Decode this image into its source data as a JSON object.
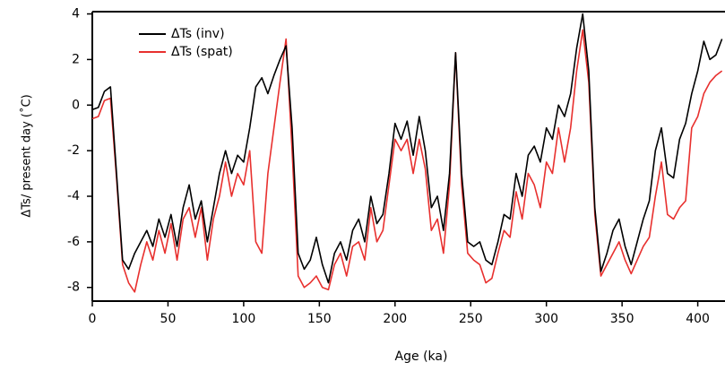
{
  "chart_data": {
    "type": "line",
    "xlabel": "Age (ka)",
    "ylabel": "ΔTs/ present day (˚C)",
    "xlim": [
      0,
      418
    ],
    "ylim": [
      -8.6,
      4.1
    ],
    "xticks": [
      0,
      50,
      100,
      150,
      200,
      250,
      300,
      350,
      400
    ],
    "yticks": [
      -8,
      -6,
      -4,
      -2,
      0,
      2,
      4
    ],
    "legend": "top-left",
    "x": [
      0,
      4,
      8,
      12,
      16,
      20,
      24,
      28,
      32,
      36,
      40,
      44,
      48,
      52,
      56,
      60,
      64,
      68,
      72,
      76,
      80,
      84,
      88,
      92,
      96,
      100,
      104,
      108,
      112,
      116,
      120,
      124,
      128,
      132,
      136,
      140,
      144,
      148,
      152,
      156,
      160,
      164,
      168,
      172,
      176,
      180,
      184,
      188,
      192,
      196,
      200,
      204,
      208,
      212,
      216,
      220,
      224,
      228,
      232,
      236,
      240,
      244,
      248,
      252,
      256,
      260,
      264,
      268,
      272,
      276,
      280,
      284,
      288,
      292,
      296,
      300,
      304,
      308,
      312,
      316,
      320,
      324,
      328,
      332,
      336,
      340,
      344,
      348,
      352,
      356,
      360,
      364,
      368,
      372,
      376,
      380,
      384,
      388,
      392,
      396,
      400,
      404,
      408,
      412,
      416
    ],
    "series": [
      {
        "name": "ΔTs (inv)",
        "color": "#000000",
        "values": [
          -0.2,
          -0.1,
          0.6,
          0.8,
          -3,
          -6.8,
          -7.2,
          -6.5,
          -6.0,
          -5.5,
          -6.2,
          -5.0,
          -5.8,
          -4.8,
          -6.2,
          -4.5,
          -3.5,
          -5.0,
          -4.2,
          -6.0,
          -4.5,
          -3.0,
          -2.0,
          -3.0,
          -2.2,
          -2.5,
          -1.0,
          0.8,
          1.2,
          0.5,
          1.3,
          2.0,
          2.6,
          -1.0,
          -6.5,
          -7.2,
          -6.8,
          -5.8,
          -7.0,
          -7.8,
          -6.5,
          -6.0,
          -6.8,
          -5.5,
          -5.0,
          -6.0,
          -4.0,
          -5.2,
          -4.8,
          -3.0,
          -0.8,
          -1.5,
          -0.7,
          -2.2,
          -0.5,
          -2.0,
          -4.5,
          -4.0,
          -5.5,
          -3.0,
          2.3,
          -3.0,
          -6.0,
          -6.2,
          -6.0,
          -6.8,
          -7.0,
          -6.0,
          -4.8,
          -5.0,
          -3.0,
          -4.0,
          -2.2,
          -1.8,
          -2.5,
          -1.0,
          -1.5,
          0.0,
          -0.5,
          0.5,
          2.5,
          4.0,
          1.5,
          -4.5,
          -7.3,
          -6.5,
          -5.5,
          -5.0,
          -6.2,
          -7.0,
          -6.0,
          -5.0,
          -4.2,
          -2.0,
          -1.0,
          -3.0,
          -3.2,
          -1.5,
          -0.8,
          0.5,
          1.5,
          2.8,
          2.0,
          2.2,
          2.9
        ]
      },
      {
        "name": "ΔTs (spat)",
        "color": "#e8302e",
        "values": [
          -0.6,
          -0.5,
          0.2,
          0.3,
          -3.2,
          -7.0,
          -7.8,
          -8.2,
          -7.0,
          -6.0,
          -6.8,
          -5.5,
          -6.5,
          -5.2,
          -6.8,
          -5.0,
          -4.5,
          -5.8,
          -4.5,
          -6.8,
          -5.0,
          -4.0,
          -2.5,
          -4.0,
          -3.0,
          -3.5,
          -2.0,
          -6.0,
          -6.5,
          -3.0,
          -1.0,
          1.0,
          2.9,
          -2.0,
          -7.5,
          -8.0,
          -7.8,
          -7.5,
          -8.0,
          -8.1,
          -7.0,
          -6.5,
          -7.5,
          -6.2,
          -6.0,
          -6.8,
          -4.5,
          -6.0,
          -5.5,
          -3.5,
          -1.5,
          -2.0,
          -1.5,
          -3.0,
          -1.5,
          -2.8,
          -5.5,
          -5.0,
          -6.5,
          -3.5,
          2.3,
          -3.5,
          -6.5,
          -6.8,
          -7.0,
          -7.8,
          -7.6,
          -6.5,
          -5.5,
          -5.8,
          -3.8,
          -5.0,
          -3.0,
          -3.5,
          -4.5,
          -2.5,
          -3.0,
          -1.0,
          -2.5,
          -1.0,
          1.5,
          3.3,
          1.0,
          -4.8,
          -7.5,
          -7.0,
          -6.5,
          -6.0,
          -6.8,
          -7.4,
          -6.8,
          -6.2,
          -5.8,
          -4.0,
          -2.5,
          -4.8,
          -5.0,
          -4.5,
          -4.2,
          -1.0,
          -0.5,
          0.5,
          1.0,
          1.3,
          1.5
        ]
      }
    ]
  }
}
